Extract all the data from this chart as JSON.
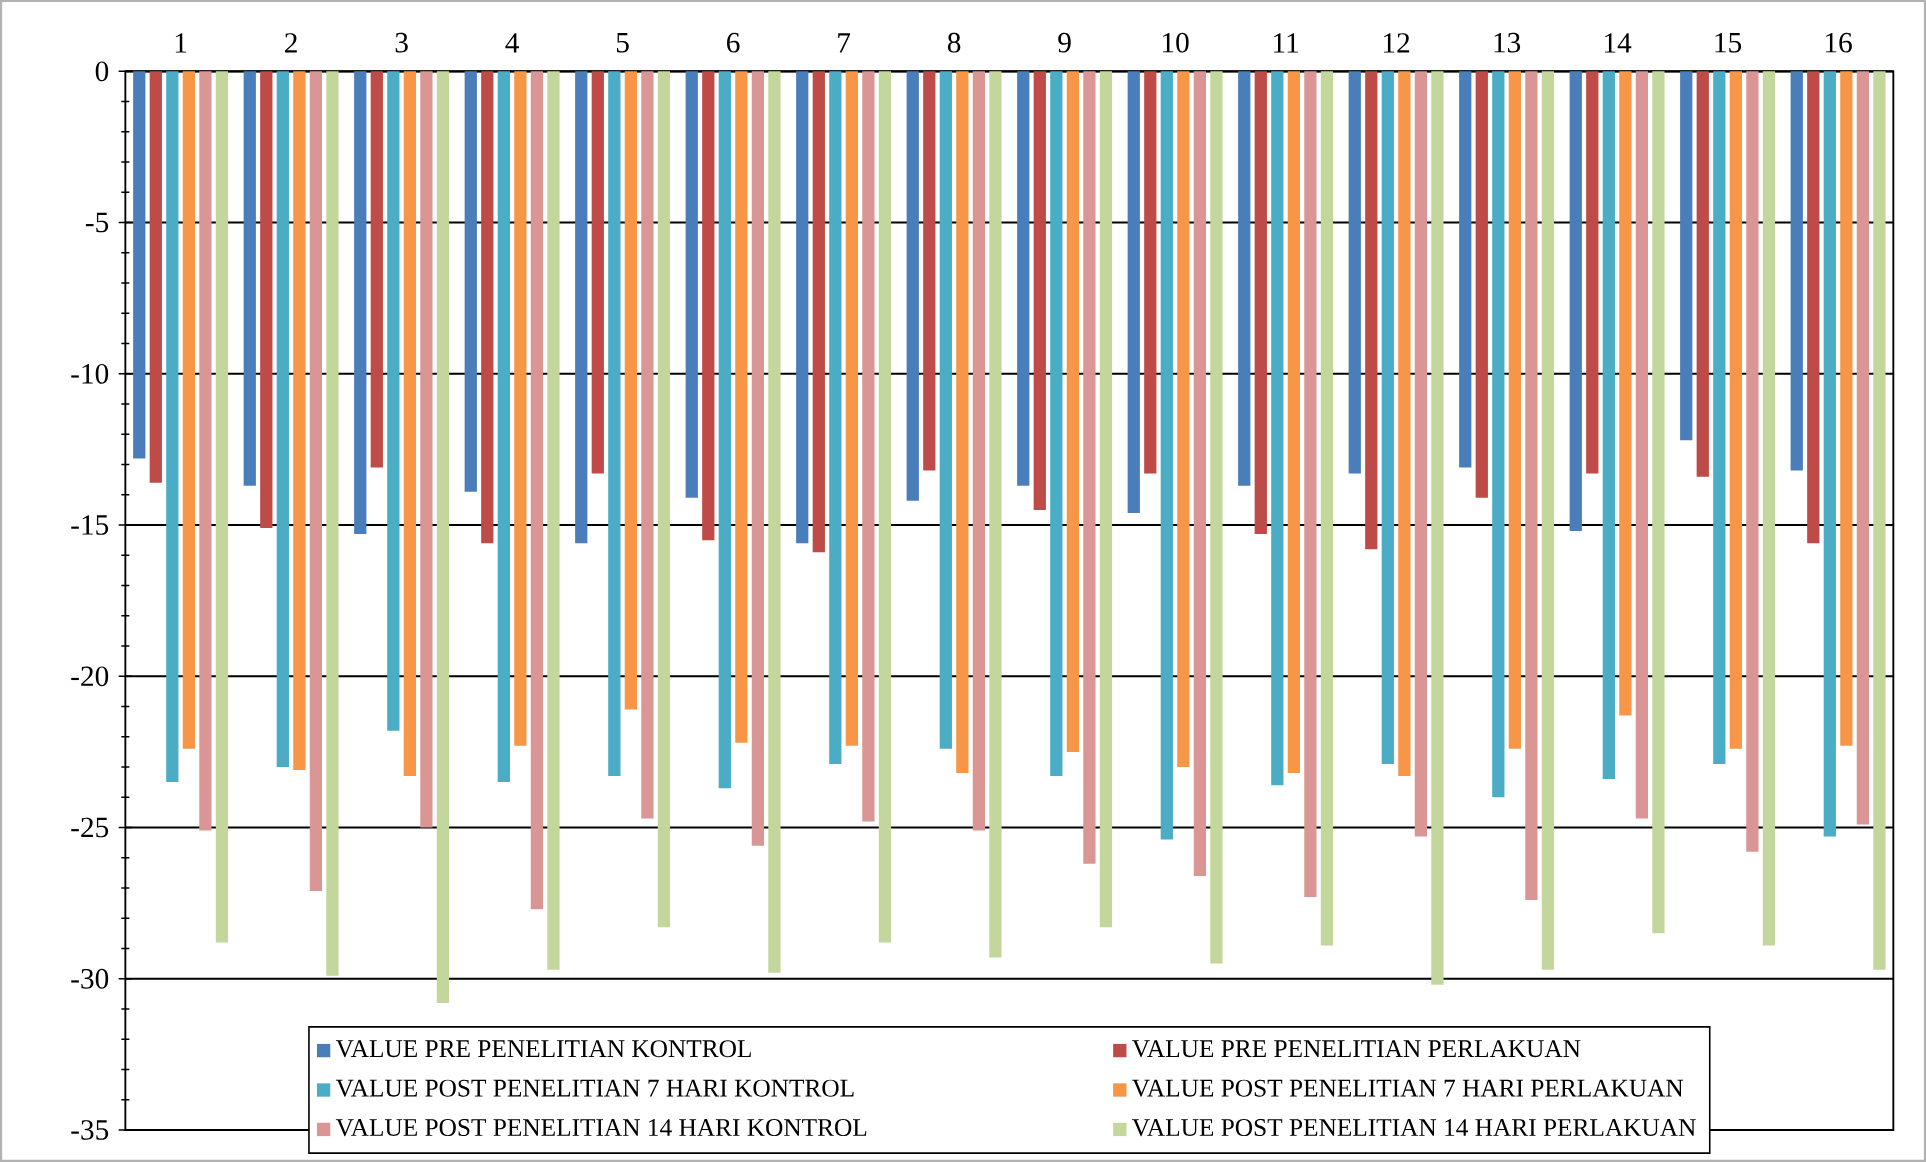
{
  "chart_data": {
    "type": "bar",
    "categories": [
      "1",
      "2",
      "3",
      "4",
      "5",
      "6",
      "7",
      "8",
      "9",
      "10",
      "11",
      "12",
      "13",
      "14",
      "15",
      "16"
    ],
    "series": [
      {
        "name": "VALUE PRE PENELITIAN KONTROL",
        "color": "#4a7ebb",
        "values": [
          -12.8,
          -13.7,
          -15.3,
          -13.9,
          -15.6,
          -14.1,
          -15.6,
          -14.2,
          -13.7,
          -14.6,
          -13.7,
          -13.3,
          -13.1,
          -15.2,
          -12.2,
          -13.2
        ]
      },
      {
        "name": "VALUE PRE PENELITIAN PERLAKUAN",
        "color": "#be4b48",
        "values": [
          -13.6,
          -15.1,
          -13.1,
          -15.6,
          -13.3,
          -15.5,
          -15.9,
          -13.2,
          -14.5,
          -13.3,
          -15.3,
          -15.8,
          -14.1,
          -13.3,
          -13.4,
          -15.6
        ]
      },
      {
        "name": "VALUE POST PENELITIAN 7 HARI KONTROL",
        "color": "#4bacc6",
        "values": [
          -23.5,
          -23.0,
          -21.8,
          -23.5,
          -23.3,
          -23.7,
          -22.9,
          -22.4,
          -23.3,
          -25.4,
          -23.6,
          -22.9,
          -24.0,
          -23.4,
          -22.9,
          -25.3
        ]
      },
      {
        "name": "VALUE POST PENELITIAN 7 HARI PERLAKUAN",
        "color": "#f79646",
        "values": [
          -22.4,
          -23.1,
          -23.3,
          -22.3,
          -21.1,
          -22.2,
          -22.3,
          -23.2,
          -22.5,
          -23.0,
          -23.2,
          -23.3,
          -22.4,
          -21.3,
          -22.4,
          -22.3
        ]
      },
      {
        "name": "VALUE POST PENELITIAN 14 HARI KONTROL",
        "color": "#d99694",
        "values": [
          -25.1,
          -27.1,
          -25.0,
          -27.7,
          -24.7,
          -25.6,
          -24.8,
          -25.1,
          -26.2,
          -26.6,
          -27.3,
          -25.3,
          -27.4,
          -24.7,
          -25.8,
          -24.9
        ]
      },
      {
        "name": "VALUE POST PENELITIAN 14 HARI PERLAKUAN",
        "color": "#c3d69b",
        "values": [
          -28.8,
          -29.9,
          -30.8,
          -29.7,
          -28.3,
          -29.8,
          -28.8,
          -29.3,
          -28.3,
          -29.5,
          -28.9,
          -30.2,
          -29.7,
          -28.5,
          -28.9,
          -29.7
        ]
      }
    ],
    "ylim": [
      -35,
      0
    ],
    "yticks": [
      0,
      -5,
      -10,
      -15,
      -20,
      -25,
      -30,
      -35
    ],
    "grid": "y",
    "legend": "bottom"
  }
}
